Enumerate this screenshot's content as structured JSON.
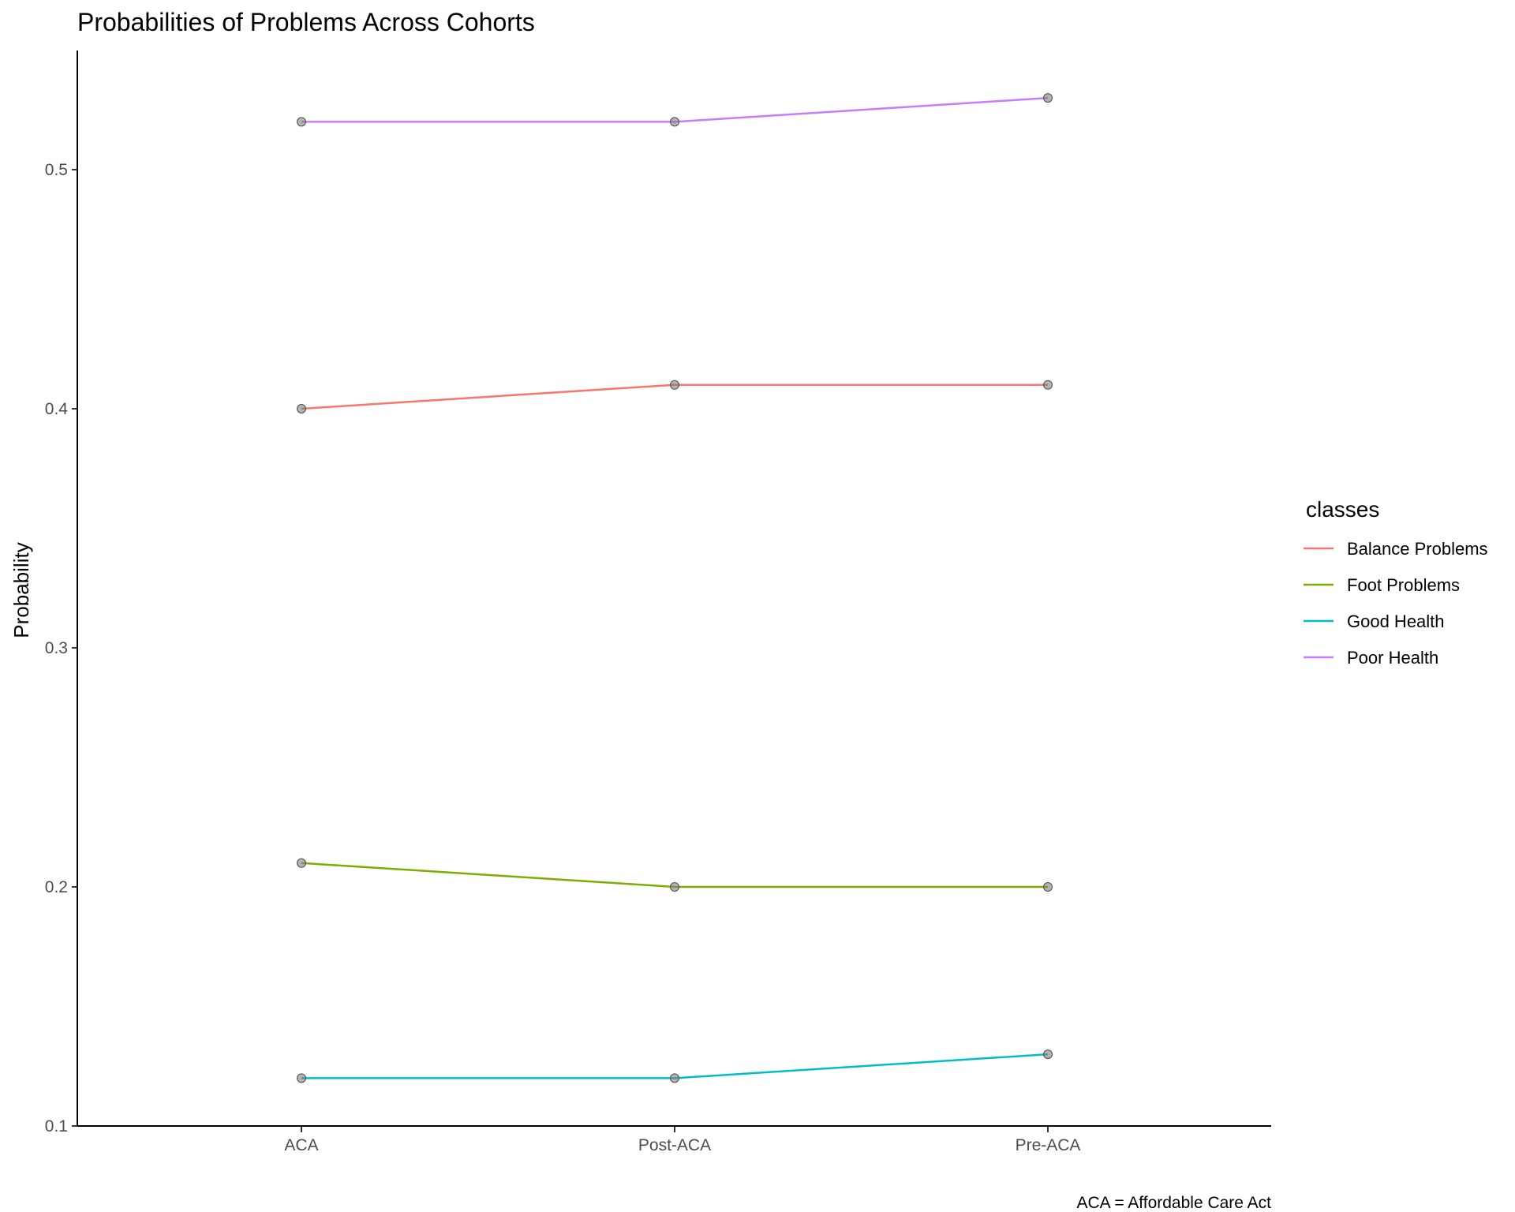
{
  "chart_data": {
    "type": "line",
    "title": "Probabilities of Problems Across Cohorts",
    "xlabel": "",
    "ylabel": "Probability",
    "caption": "ACA = Affordable Care Act",
    "categories": [
      "ACA",
      "Post-ACA",
      "Pre-ACA"
    ],
    "ylim": [
      0.1,
      0.55
    ],
    "yticks": [
      0.1,
      0.2,
      0.3,
      0.4,
      0.5
    ],
    "ytick_labels": [
      "0.1",
      "0.2",
      "0.3",
      "0.4",
      "0.5"
    ],
    "grid": false,
    "legend": {
      "title": "classes",
      "position": "right"
    },
    "series": [
      {
        "name": "Balance Problems",
        "color": "#F8766D",
        "values": [
          0.4,
          0.41,
          0.41
        ]
      },
      {
        "name": "Foot Problems",
        "color": "#7CAE00",
        "values": [
          0.21,
          0.2,
          0.2
        ]
      },
      {
        "name": "Good Health",
        "color": "#00BFC4",
        "values": [
          0.12,
          0.12,
          0.13
        ]
      },
      {
        "name": "Poor Health",
        "color": "#C77CFF",
        "values": [
          0.52,
          0.52,
          0.53
        ]
      }
    ],
    "point_color": "#808080"
  }
}
